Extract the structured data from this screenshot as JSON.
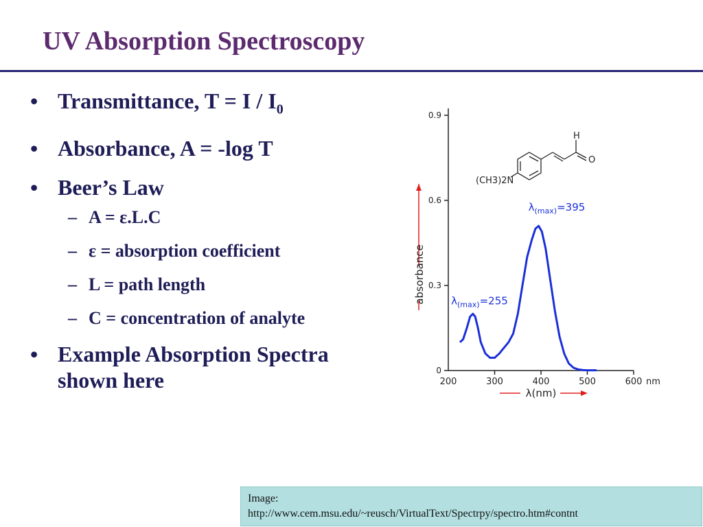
{
  "slide": {
    "title": "UV Absorption Spectroscopy",
    "bullets": [
      {
        "symbol": "•",
        "text": "Transmittance, T = I / I",
        "subscript": "0"
      },
      {
        "symbol": "•",
        "text": "Absorbance, A = -log T"
      },
      {
        "symbol": "•",
        "text": "Beer’s Law"
      },
      {
        "symbol": "•",
        "text": "Example Absorption Spectra shown here"
      }
    ],
    "sub_bullets": [
      {
        "symbol": "–",
        "text": "A = ε.L.C"
      },
      {
        "symbol": "–",
        "text": "ε = absorption coefficient"
      },
      {
        "symbol": "–",
        "text": "L = path length"
      },
      {
        "symbol": "–",
        "text": "C = concentration of  analyte"
      }
    ],
    "caption": {
      "line1": "Image:",
      "line2": "http://www.cem.msu.edu/~reusch/VirtualText/Spectrpy/spectro.htm#contnt"
    },
    "colors": {
      "title": "#5c2a6e",
      "text": "#1e1d57",
      "rule": "#262474",
      "caption_bg": "#b3dfe0",
      "curve": "#1a2fd8",
      "arrow": "#e02020"
    }
  },
  "chart_data": {
    "type": "line",
    "xlabel": "λ(nm)",
    "ylabel": "absorbance",
    "xlim": [
      200,
      600
    ],
    "ylim": [
      0,
      0.9
    ],
    "x_ticks": [
      "200",
      "300",
      "400",
      "500",
      "600"
    ],
    "x_unit": "nm",
    "y_ticks": [
      "0",
      "0.3",
      "0.6",
      "0.9"
    ],
    "grid": false,
    "series": [
      {
        "x": [
          225,
          232,
          240,
          247,
          253,
          258,
          264,
          270,
          280,
          290,
          300,
          310,
          320,
          330,
          340,
          350,
          360,
          370,
          380,
          388,
          395,
          402,
          410,
          420,
          430,
          440,
          450,
          460,
          470,
          480,
          490,
          500,
          510,
          520
        ],
        "y": [
          0.1,
          0.11,
          0.15,
          0.19,
          0.2,
          0.19,
          0.15,
          0.1,
          0.06,
          0.045,
          0.045,
          0.06,
          0.08,
          0.1,
          0.13,
          0.2,
          0.3,
          0.4,
          0.46,
          0.5,
          0.51,
          0.49,
          0.43,
          0.32,
          0.21,
          0.12,
          0.06,
          0.025,
          0.01,
          0.004,
          0.002,
          0.001,
          0.001,
          0.001
        ]
      }
    ],
    "annotations": [
      {
        "label": "λ",
        "sub": "(max)",
        "value": "=395",
        "x": 395,
        "y": 0.51
      },
      {
        "label": "λ",
        "sub": "(max)",
        "value": "=255",
        "x": 255,
        "y": 0.2
      }
    ],
    "structure_labels": {
      "substituent": "(CH3)2N",
      "aldehyde_h": "H",
      "aldehyde_o": "O"
    }
  }
}
